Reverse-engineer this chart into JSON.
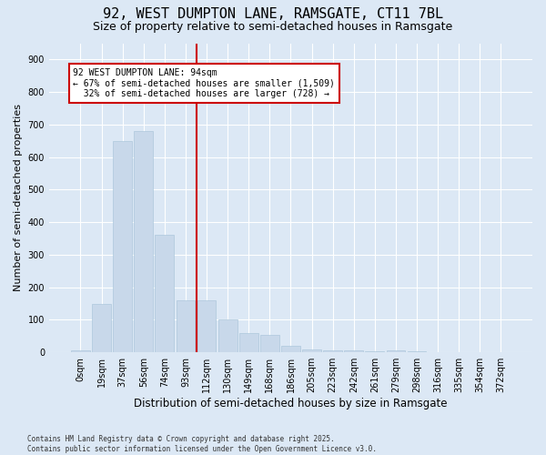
{
  "title1": "92, WEST DUMPTON LANE, RAMSGATE, CT11 7BL",
  "title2": "Size of property relative to semi-detached houses in Ramsgate",
  "xlabel": "Distribution of semi-detached houses by size in Ramsgate",
  "ylabel": "Number of semi-detached properties",
  "footnote1": "Contains HM Land Registry data © Crown copyright and database right 2025.",
  "footnote2": "Contains public sector information licensed under the Open Government Licence v3.0.",
  "annotation_line1": "92 WEST DUMPTON LANE: 94sqm",
  "annotation_line2": "← 67% of semi-detached houses are smaller (1,509)",
  "annotation_line3": "32% of semi-detached houses are larger (728) →",
  "bar_color": "#c8d8ea",
  "bar_edge_color": "#aec8dc",
  "redline_color": "#cc0000",
  "annotation_box_edge": "#cc0000",
  "background_color": "#dce8f5",
  "grid_color": "#ffffff",
  "categories": [
    "0sqm",
    "19sqm",
    "37sqm",
    "56sqm",
    "74sqm",
    "93sqm",
    "112sqm",
    "130sqm",
    "149sqm",
    "168sqm",
    "186sqm",
    "205sqm",
    "223sqm",
    "242sqm",
    "261sqm",
    "279sqm",
    "298sqm",
    "316sqm",
    "335sqm",
    "354sqm",
    "372sqm"
  ],
  "bar_values": [
    5,
    150,
    650,
    680,
    360,
    160,
    160,
    100,
    60,
    55,
    20,
    10,
    6,
    5,
    3,
    5,
    2,
    1,
    0,
    0,
    0
  ],
  "redline_x": 5.5,
  "ylim": [
    0,
    950
  ],
  "yticks": [
    0,
    100,
    200,
    300,
    400,
    500,
    600,
    700,
    800,
    900
  ],
  "title1_fontsize": 11,
  "title2_fontsize": 9,
  "ylabel_fontsize": 8,
  "xlabel_fontsize": 8.5,
  "tick_fontsize": 7,
  "footnote_fontsize": 5.5
}
